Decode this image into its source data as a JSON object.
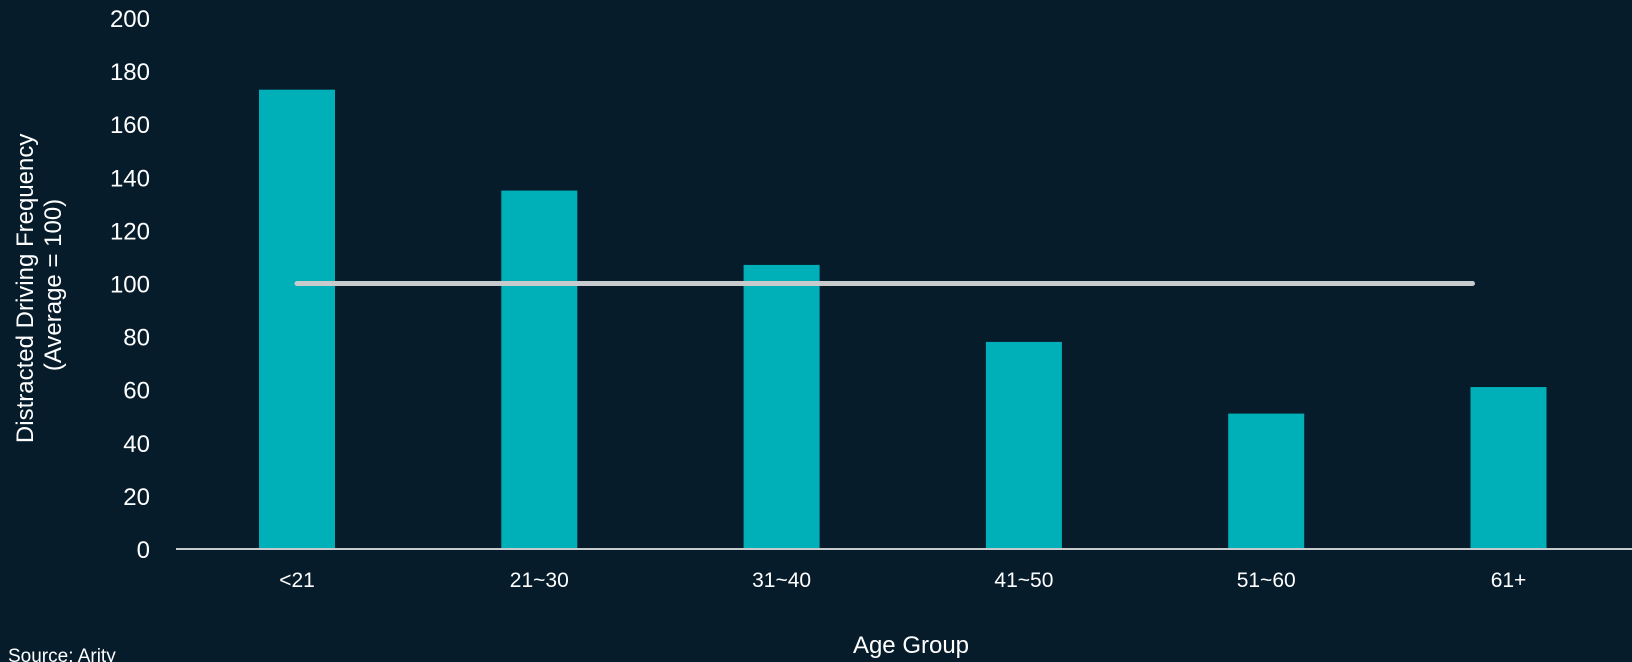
{
  "chart_data": {
    "type": "bar",
    "title": "",
    "xlabel": "Age Group",
    "ylabel_line1": "Distracted Driving Frequency",
    "ylabel_line2": "(Average = 100)",
    "categories": [
      "<21",
      "21~30",
      "31~40",
      "41~50",
      "51~60",
      "61+"
    ],
    "values": [
      173,
      135,
      107,
      78,
      51,
      61
    ],
    "reference_line": 100,
    "ylim": [
      0,
      200
    ],
    "yticks": [
      0,
      20,
      40,
      60,
      80,
      100,
      120,
      140,
      160,
      180,
      200
    ],
    "grid": false,
    "legend": "none",
    "colors": {
      "bar": "#00b0b9",
      "reference_line": "#c7cbce",
      "axis": "#c7cbce",
      "background": "#061c2b"
    }
  },
  "source": "Source: Arity"
}
